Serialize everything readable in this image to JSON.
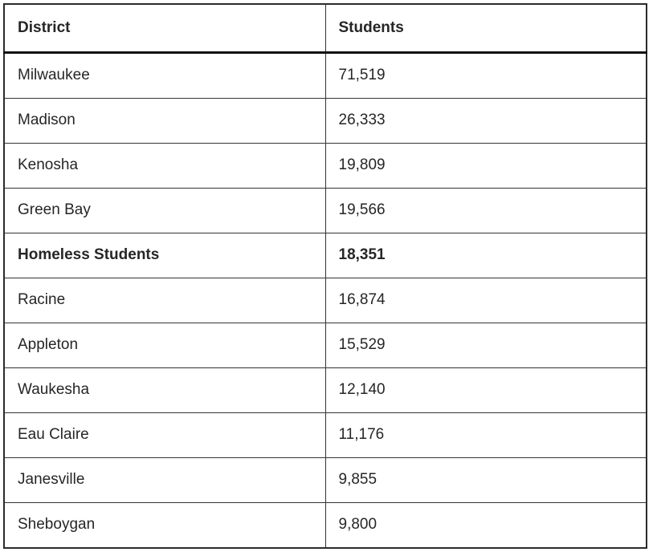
{
  "table": {
    "columns": [
      {
        "label": "District"
      },
      {
        "label": "Students"
      }
    ],
    "rows": [
      {
        "district": "Milwaukee",
        "students": "71,519",
        "bold": false
      },
      {
        "district": "Madison",
        "students": "26,333",
        "bold": false
      },
      {
        "district": "Kenosha",
        "students": "19,809",
        "bold": false
      },
      {
        "district": "Green Bay",
        "students": "19,566",
        "bold": false
      },
      {
        "district": "Homeless Students",
        "students": "18,351",
        "bold": true
      },
      {
        "district": "Racine",
        "students": "16,874",
        "bold": false
      },
      {
        "district": "Appleton",
        "students": "15,529",
        "bold": false
      },
      {
        "district": "Waukesha",
        "students": "12,140",
        "bold": false
      },
      {
        "district": "Eau Claire",
        "students": "11,176",
        "bold": false
      },
      {
        "district": "Janesville",
        "students": "9,855",
        "bold": false
      },
      {
        "district": "Sheboygan",
        "students": "9,800",
        "bold": false
      }
    ]
  },
  "colors": {
    "text": "#262626",
    "outer_border": "#2b2b2b",
    "inner_border": "#343434",
    "header_rule": "#111111",
    "background": "#ffffff"
  }
}
